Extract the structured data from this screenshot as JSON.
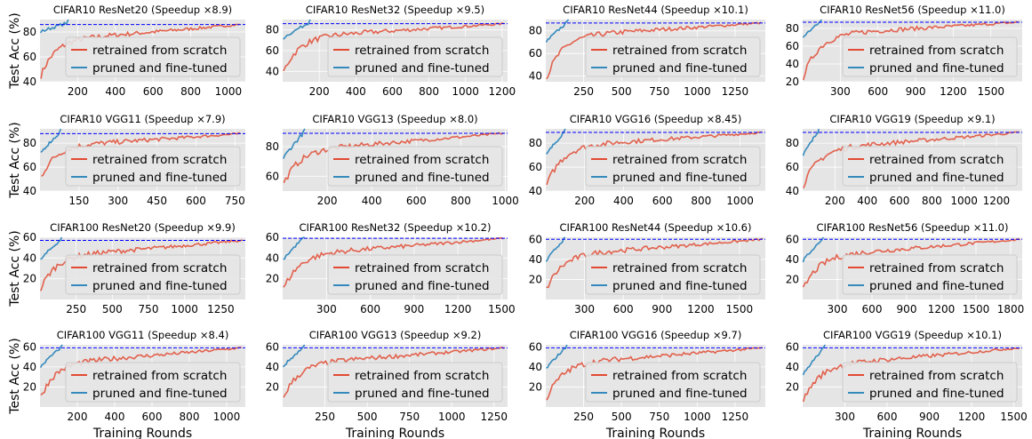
{
  "figure": {
    "y_axis_label": "Test Acc (%)",
    "x_axis_label": "Training Rounds",
    "colors": {
      "scratch": "#e24a33",
      "finetune": "#348abd",
      "reference": "#0000ff",
      "panel_bg": "#e5e5e5"
    }
  },
  "chart_data": [
    {
      "type": "line",
      "title": "CIFAR10 ResNet20 (Speedup ×8.9)",
      "xlim": [
        0,
        1090
      ],
      "ylim": [
        40,
        90
      ],
      "xticks": [
        200,
        400,
        600,
        800,
        1000
      ],
      "yticks": [
        40,
        60,
        80
      ],
      "ref": 86,
      "s_end": 1060,
      "f_end": 150,
      "s_start": 45,
      "s_mid": 74,
      "s_final": 86,
      "f_start": 80,
      "legend": [
        "retrained from scratch",
        "pruned and fine-tuned"
      ]
    },
    {
      "type": "line",
      "title": "CIFAR10 ResNet32 (Speedup ×9.5)",
      "xlim": [
        0,
        1230
      ],
      "ylim": [
        30,
        90
      ],
      "xticks": [
        200,
        400,
        600,
        800,
        1000,
        1200
      ],
      "yticks": [
        40,
        60,
        80
      ],
      "ref": 86,
      "s_end": 1210,
      "f_end": 150,
      "s_start": 40,
      "s_mid": 74,
      "s_final": 86,
      "f_start": 72,
      "legend": [
        "retrained from scratch",
        "pruned and fine-tuned"
      ]
    },
    {
      "type": "line",
      "title": "CIFAR10 ResNet44 (Speedup ×10.1)",
      "xlim": [
        0,
        1450
      ],
      "ylim": [
        35,
        90
      ],
      "xticks": [
        250,
        500,
        750,
        1000,
        1250
      ],
      "yticks": [
        40,
        60,
        80
      ],
      "ref": 87,
      "s_end": 1420,
      "f_end": 150,
      "s_start": 38,
      "s_mid": 76,
      "s_final": 87,
      "f_start": 70,
      "legend": [
        "retrained from scratch",
        "pruned and fine-tuned"
      ]
    },
    {
      "type": "line",
      "title": "CIFAR10 ResNet56 (Speedup ×11.0)",
      "xlim": [
        0,
        1750
      ],
      "ylim": [
        20,
        90
      ],
      "xticks": [
        300,
        600,
        900,
        1200,
        1500
      ],
      "yticks": [
        20,
        40,
        60,
        80
      ],
      "ref": 87,
      "s_end": 1720,
      "f_end": 150,
      "s_start": 25,
      "s_mid": 74,
      "s_final": 87,
      "f_start": 70,
      "legend": [
        "retrained from scratch",
        "pruned and fine-tuned"
      ]
    },
    {
      "type": "line",
      "title": "CIFAR10 VGG11 (Speedup ×7.9)",
      "xlim": [
        0,
        790
      ],
      "ylim": [
        40,
        92
      ],
      "xticks": [
        150,
        300,
        450,
        600,
        750
      ],
      "yticks": [
        40,
        60,
        80
      ],
      "ref": 88,
      "s_end": 770,
      "f_end": 80,
      "s_start": 52,
      "s_mid": 78,
      "s_final": 88,
      "f_start": 72,
      "legend": [
        "retrained from scratch",
        "pruned and fine-tuned"
      ]
    },
    {
      "type": "line",
      "title": "CIFAR10 VGG13 (Speedup ×8.0)",
      "xlim": [
        0,
        1010
      ],
      "ylim": [
        50,
        92
      ],
      "xticks": [
        200,
        400,
        600,
        800,
        1000
      ],
      "yticks": [
        60,
        80
      ],
      "ref": 89,
      "s_end": 990,
      "f_end": 100,
      "s_start": 55,
      "s_mid": 78,
      "s_final": 89,
      "f_start": 72,
      "legend": [
        "retrained from scratch",
        "pruned and fine-tuned"
      ]
    },
    {
      "type": "line",
      "title": "CIFAR10 VGG16 (Speedup ×8.45)",
      "xlim": [
        0,
        1130
      ],
      "ylim": [
        40,
        92
      ],
      "xticks": [
        200,
        400,
        600,
        800,
        1000
      ],
      "yticks": [
        40,
        60,
        80
      ],
      "ref": 89,
      "s_end": 1110,
      "f_end": 100,
      "s_start": 45,
      "s_mid": 78,
      "s_final": 89,
      "f_start": 70,
      "legend": [
        "retrained from scratch",
        "pruned and fine-tuned"
      ]
    },
    {
      "type": "line",
      "title": "CIFAR10 VGG19 (Speedup ×9.1)",
      "xlim": [
        0,
        1360
      ],
      "ylim": [
        40,
        92
      ],
      "xticks": [
        200,
        400,
        600,
        800,
        1000,
        1200
      ],
      "yticks": [
        40,
        60,
        80
      ],
      "ref": 89,
      "s_end": 1340,
      "f_end": 100,
      "s_start": 45,
      "s_mid": 76,
      "s_final": 89,
      "f_start": 70,
      "legend": [
        "retrained from scratch",
        "pruned and fine-tuned"
      ]
    },
    {
      "type": "line",
      "title": "CIFAR100 ResNet20 (Speedup ×9.9)",
      "xlim": [
        0,
        1420
      ],
      "ylim": [
        0,
        60
      ],
      "xticks": [
        250,
        500,
        750,
        1000,
        1250
      ],
      "yticks": [
        20,
        40,
        60
      ],
      "ref": 57,
      "s_end": 1400,
      "f_end": 150,
      "s_start": 10,
      "s_mid": 42,
      "s_final": 57,
      "f_start": 38,
      "legend": [
        "retrained from scratch",
        "pruned and fine-tuned"
      ]
    },
    {
      "type": "line",
      "title": "CIFAR100 ResNet32 (Speedup ×10.2)",
      "xlim": [
        0,
        1540
      ],
      "ylim": [
        0,
        60
      ],
      "xticks": [
        300,
        600,
        900,
        1200,
        1500
      ],
      "yticks": [
        20,
        40,
        60
      ],
      "ref": 59,
      "s_end": 1510,
      "f_end": 150,
      "s_start": 10,
      "s_mid": 44,
      "s_final": 59,
      "f_start": 38,
      "legend": [
        "retrained from scratch",
        "pruned and fine-tuned"
      ]
    },
    {
      "type": "line",
      "title": "CIFAR100 ResNet44 (Speedup ×10.6)",
      "xlim": [
        0,
        1700
      ],
      "ylim": [
        0,
        62
      ],
      "xticks": [
        300,
        600,
        900,
        1200,
        1500
      ],
      "yticks": [
        20,
        40,
        60
      ],
      "ref": 60,
      "s_end": 1680,
      "f_end": 150,
      "s_start": 10,
      "s_mid": 45,
      "s_final": 60,
      "f_start": 38,
      "legend": [
        "retrained from scratch",
        "pruned and fine-tuned"
      ]
    },
    {
      "type": "line",
      "title": "CIFAR100 ResNet56 (Speedup ×11.0)",
      "xlim": [
        0,
        1900
      ],
      "ylim": [
        0,
        62
      ],
      "xticks": [
        300,
        600,
        900,
        1200,
        1500,
        1800
      ],
      "yticks": [
        20,
        40,
        60
      ],
      "ref": 60,
      "s_end": 1880,
      "f_end": 180,
      "s_start": 10,
      "s_mid": 44,
      "s_final": 60,
      "f_start": 38,
      "legend": [
        "retrained from scratch",
        "pruned and fine-tuned"
      ]
    },
    {
      "type": "line",
      "title": "CIFAR100 VGG11 (Speedup ×8.4)",
      "xlim": [
        0,
        1100
      ],
      "ylim": [
        0,
        62
      ],
      "xticks": [
        200,
        400,
        600,
        800,
        1000
      ],
      "yticks": [
        20,
        40,
        60
      ],
      "ref": 59,
      "s_end": 1080,
      "f_end": 120,
      "s_start": 10,
      "s_mid": 44,
      "s_final": 59,
      "f_start": 40,
      "legend": [
        "retrained from scratch",
        "pruned and fine-tuned"
      ]
    },
    {
      "type": "line",
      "title": "CIFAR100 VGG13 (Speedup ×9.2)",
      "xlim": [
        0,
        1330
      ],
      "ylim": [
        0,
        62
      ],
      "xticks": [
        250,
        500,
        750,
        1000,
        1250
      ],
      "yticks": [
        20,
        40,
        60
      ],
      "ref": 59,
      "s_end": 1310,
      "f_end": 130,
      "s_start": 10,
      "s_mid": 44,
      "s_final": 59,
      "f_start": 40,
      "legend": [
        "retrained from scratch",
        "pruned and fine-tuned"
      ]
    },
    {
      "type": "line",
      "title": "CIFAR100 VGG16 (Speedup ×9.7)",
      "xlim": [
        0,
        1450
      ],
      "ylim": [
        0,
        62
      ],
      "xticks": [
        250,
        500,
        750,
        1000,
        1250
      ],
      "yticks": [
        20,
        40,
        60
      ],
      "ref": 59,
      "s_end": 1430,
      "f_end": 140,
      "s_start": 8,
      "s_mid": 44,
      "s_final": 59,
      "f_start": 38,
      "legend": [
        "retrained from scratch",
        "pruned and fine-tuned"
      ]
    },
    {
      "type": "line",
      "title": "CIFAR100 VGG19 (Speedup ×10.1)",
      "xlim": [
        0,
        1560
      ],
      "ylim": [
        0,
        62
      ],
      "xticks": [
        300,
        600,
        900,
        1200,
        1500
      ],
      "yticks": [
        20,
        40,
        60
      ],
      "ref": 59,
      "s_end": 1540,
      "f_end": 160,
      "s_start": 6,
      "s_mid": 42,
      "s_final": 59,
      "f_start": 32,
      "legend": [
        "retrained from scratch",
        "pruned and fine-tuned"
      ]
    }
  ]
}
